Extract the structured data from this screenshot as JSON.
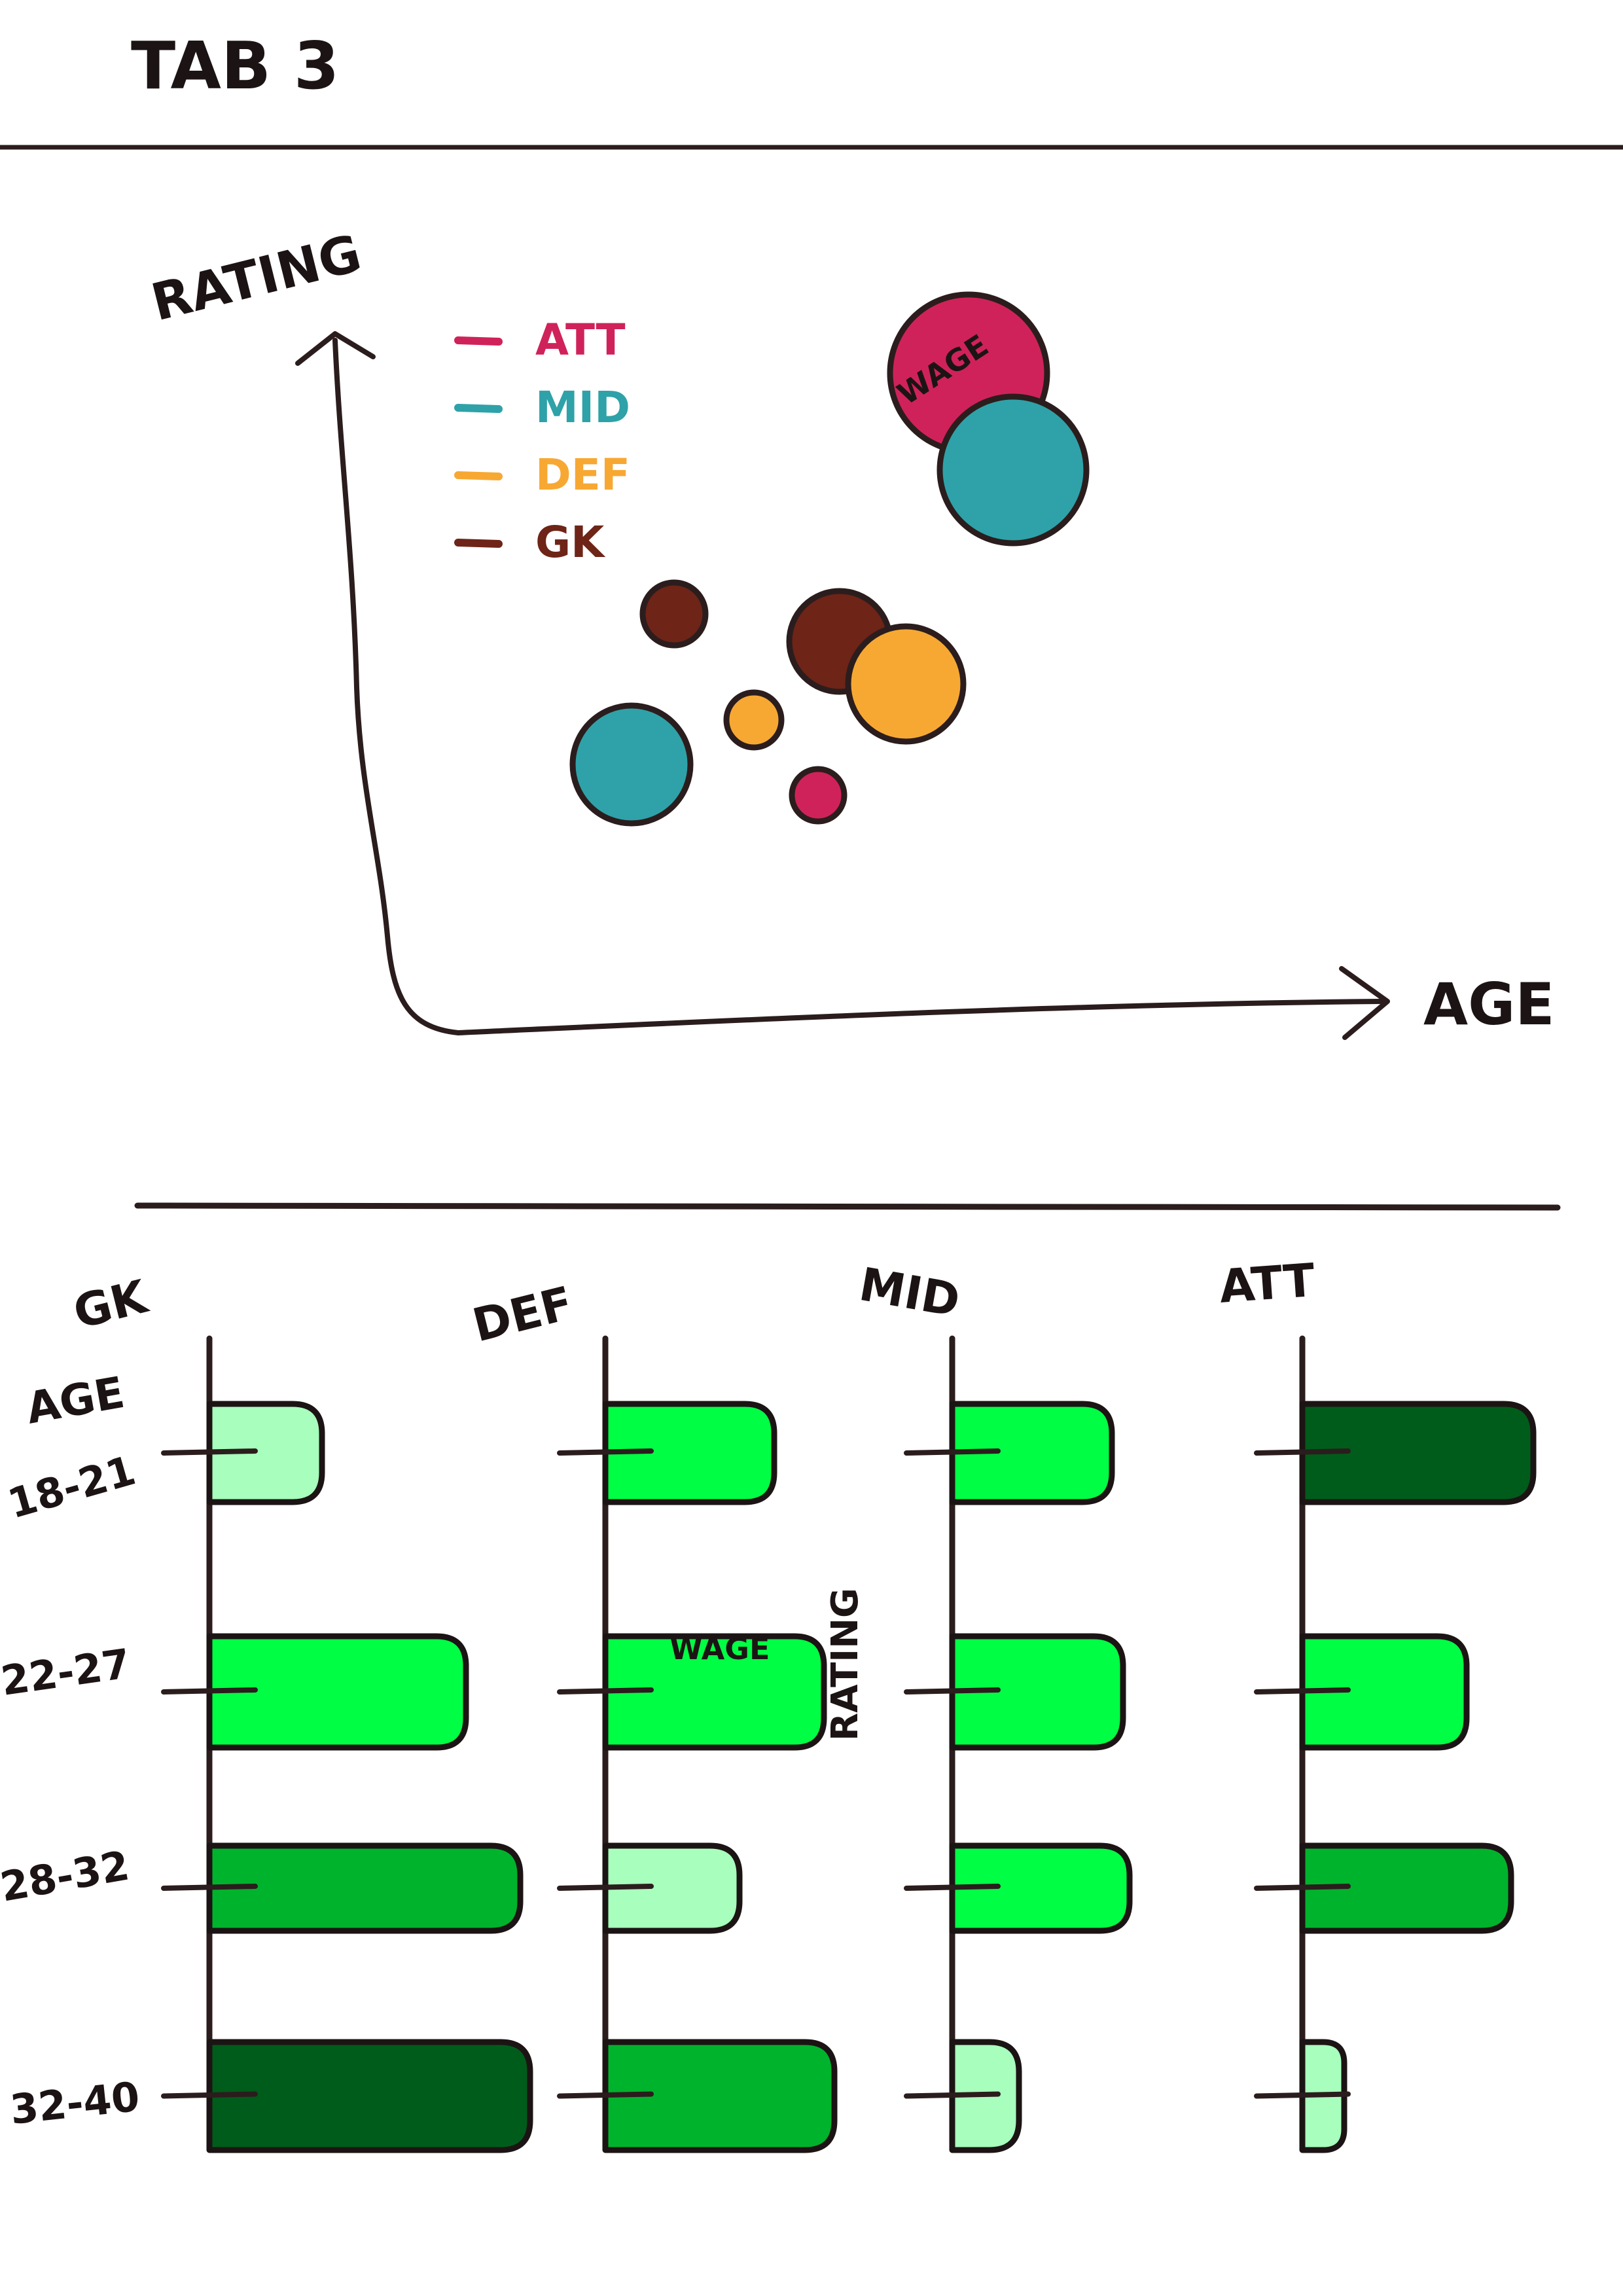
{
  "header": {
    "title": "TAB 3"
  },
  "bubble_chart": {
    "y_axis_label": "RATING",
    "x_axis_label": "AGE",
    "size_label": "WAGE",
    "legend": [
      {
        "label": "ATT",
        "color": "#d0225a"
      },
      {
        "label": "MID",
        "color": "#2ea2a8"
      },
      {
        "label": "DEF",
        "color": "#f7a833"
      },
      {
        "label": "GK",
        "color": "#6e2417"
      }
    ]
  },
  "bar_panels": {
    "age_label": "AGE",
    "rating_label": "RATING",
    "wage_label": "WAGE",
    "age_groups": [
      "18-21",
      "22-27",
      "28-32",
      "32-40"
    ],
    "positions": [
      {
        "name": "GK",
        "bars": [
          {
            "value": 0.35,
            "shade": "#a8ffbd"
          },
          {
            "value": 0.8,
            "shade": "#00ff44"
          },
          {
            "value": 0.97,
            "shade": "#00b32c"
          },
          {
            "value": 1.0,
            "shade": "#005c1a"
          }
        ]
      },
      {
        "name": "DEF",
        "bars": [
          {
            "value": 0.68,
            "shade": "#00ff44"
          },
          {
            "value": 0.88,
            "shade": "#00ff44"
          },
          {
            "value": 0.54,
            "shade": "#a8ffbd"
          },
          {
            "value": 0.92,
            "shade": "#00b32c"
          }
        ]
      },
      {
        "name": "MID",
        "bars": [
          {
            "value": 0.74,
            "shade": "#00ff44"
          },
          {
            "value": 0.79,
            "shade": "#00ff44"
          },
          {
            "value": 0.82,
            "shade": "#00ff44"
          },
          {
            "value": 0.31,
            "shade": "#a8ffbd"
          }
        ]
      },
      {
        "name": "ATT",
        "bars": [
          {
            "value": 0.94,
            "shade": "#005c1a"
          },
          {
            "value": 0.67,
            "shade": "#00ff44"
          },
          {
            "value": 0.85,
            "shade": "#00b32c"
          },
          {
            "value": 0.17,
            "shade": "#a8ffbd"
          }
        ]
      }
    ]
  }
}
